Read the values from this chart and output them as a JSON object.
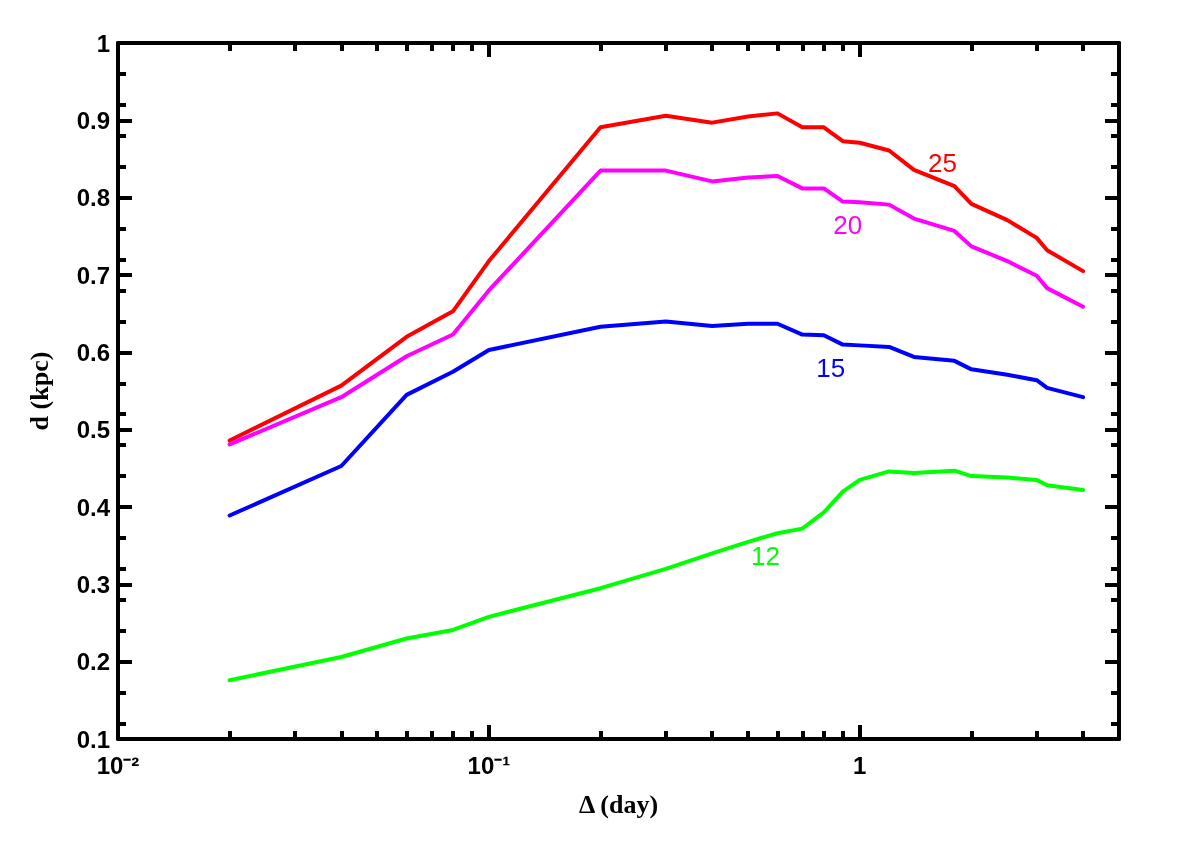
{
  "chart_data": {
    "type": "line",
    "xlabel": "Δ (day)",
    "ylabel": "d (kpc)",
    "log": "x",
    "x": [
      0.02,
      0.04,
      0.06,
      0.08,
      0.1,
      0.2,
      0.3,
      0.4,
      0.5,
      0.6,
      0.7,
      0.8,
      0.9,
      1,
      1.2,
      1.4,
      1.8,
      2,
      2.5,
      3,
      3.2,
      4
    ],
    "xlim": [
      0.01,
      5
    ],
    "xticks": [
      {
        "value": 0.01,
        "label": "10⁻²"
      },
      {
        "value": 0.1,
        "label": "10⁻¹"
      },
      1
    ],
    "ylim": [
      0.1,
      1
    ],
    "yticks": [
      0.1,
      0.2,
      0.3,
      0.4,
      0.5,
      0.6,
      0.7,
      0.8,
      0.9,
      1
    ],
    "series": [
      {
        "name": "25",
        "color": "#ff0000",
        "values": [
          0.486,
          0.557,
          0.62,
          0.653,
          0.718,
          0.891,
          0.906,
          0.897,
          0.905,
          0.909,
          0.891,
          0.891,
          0.873,
          0.871,
          0.861,
          0.836,
          0.815,
          0.792,
          0.771,
          0.748,
          0.732,
          0.705
        ]
      },
      {
        "name": "20",
        "color": "#ff00ff",
        "values": [
          0.481,
          0.542,
          0.595,
          0.623,
          0.68,
          0.835,
          0.835,
          0.821,
          0.826,
          0.828,
          0.812,
          0.812,
          0.795,
          0.794,
          0.791,
          0.773,
          0.757,
          0.737,
          0.718,
          0.699,
          0.683,
          0.659
        ]
      },
      {
        "name": "15",
        "color": "#0000ff",
        "values": [
          0.389,
          0.453,
          0.545,
          0.575,
          0.603,
          0.633,
          0.64,
          0.634,
          0.637,
          0.637,
          0.623,
          0.622,
          0.61,
          0.609,
          0.607,
          0.594,
          0.589,
          0.578,
          0.571,
          0.564,
          0.554,
          0.542
        ]
      },
      {
        "name": "12",
        "color": "#00ff00",
        "values": [
          0.176,
          0.206,
          0.23,
          0.241,
          0.258,
          0.295,
          0.32,
          0.34,
          0.355,
          0.366,
          0.372,
          0.393,
          0.42,
          0.435,
          0.446,
          0.444,
          0.447,
          0.44,
          0.438,
          0.435,
          0.428,
          0.422
        ]
      }
    ]
  }
}
